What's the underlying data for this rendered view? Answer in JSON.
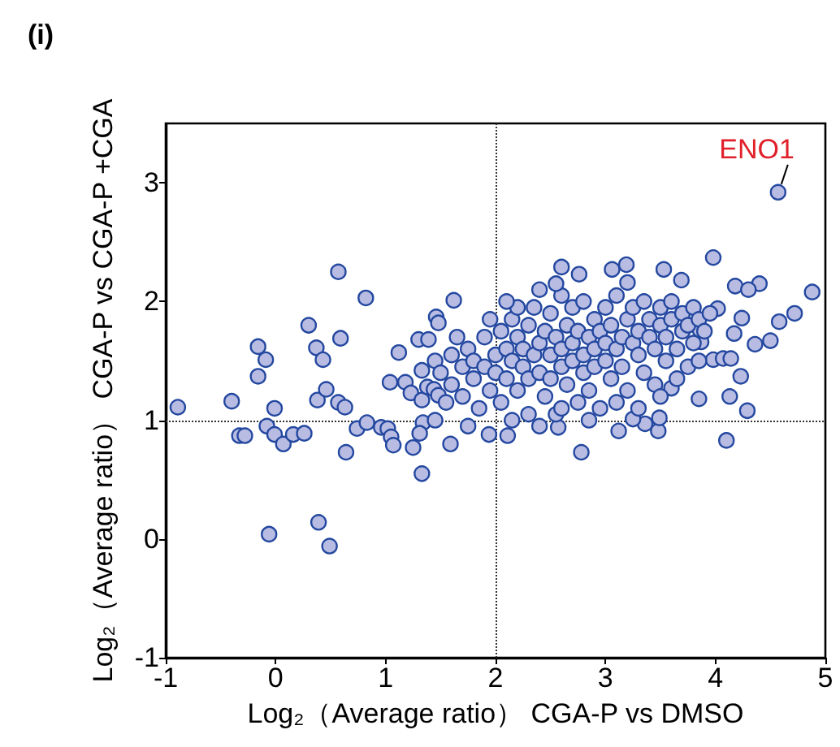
{
  "chart_data": {
    "type": "scatter",
    "title": "(i)",
    "xlabel": "Log₂（Average ratio） CGA-P vs DMSO",
    "ylabel": "Log₂（Average ratio） CGA-P vs CGA-P +CGA",
    "xlim": [
      -1,
      5
    ],
    "xticks": [
      -1,
      0,
      1,
      2,
      3,
      4,
      5
    ],
    "ylim": [
      -1,
      3.5
    ],
    "yticks": [
      -1,
      0,
      1,
      2,
      3
    ],
    "grid": false,
    "marker": "circle",
    "ref_lines": [
      {
        "axis": "x",
        "value": 2,
        "line_style": "dotted",
        "color": "#333333"
      },
      {
        "axis": "y",
        "value": 1,
        "line_style": "dotted",
        "color": "#333333"
      }
    ],
    "annotations": [
      {
        "text": "ENO1",
        "x": 4.57,
        "y": 2.92
      }
    ],
    "series": [
      {
        "color": "#b8bce3",
        "x": [
          -0.89,
          -0.4,
          -0.33,
          -0.28,
          -0.16,
          -0.09,
          -0.16,
          -0.01,
          -0.08,
          -0.01,
          0.07,
          0.16,
          0.26,
          -0.06,
          0.39,
          0.49,
          0.3,
          0.37,
          0.43,
          0.57,
          0.59,
          0.82,
          0.38,
          0.46,
          0.57,
          0.63,
          0.64,
          0.74,
          0.83,
          0.96,
          1.02,
          1.05,
          1.07,
          1.04,
          1.18,
          1.23,
          1.12,
          1.3,
          1.39,
          1.46,
          1.48,
          1.33,
          1.45,
          1.33,
          1.34,
          1.31,
          1.25,
          1.33,
          1.38,
          1.44,
          1.48,
          4.57,
          3.98,
          4.88,
          4.72,
          4.58,
          4.5,
          4.36,
          4.4,
          4.24,
          4.17,
          4.23,
          4.13,
          4.29,
          4.1,
          3.98,
          4.07,
          4.14,
          3.85,
          3.48,
          3.49,
          3.36,
          3.25,
          3.12,
          2.78,
          2.57,
          2.11,
          1.94,
          1.59,
          1.62,
          3.19,
          3.06,
          2.6,
          2.76,
          3.2,
          3.53,
          3.69,
          3.6,
          3.87,
          3.86,
          4.02,
          4.18,
          4.3,
          1.5,
          1.6,
          1.6,
          1.7,
          1.7,
          1.75,
          1.8,
          1.8,
          1.85,
          1.9,
          1.9,
          1.95,
          2.0,
          2.0,
          2.05,
          2.05,
          2.1,
          2.1,
          2.15,
          2.15,
          2.2,
          2.2,
          2.25,
          2.25,
          2.3,
          2.3,
          2.3,
          2.35,
          2.35,
          2.4,
          2.4,
          2.45,
          2.45,
          2.5,
          2.5,
          2.5,
          2.55,
          2.55,
          2.6,
          2.6,
          2.6,
          2.65,
          2.65,
          2.7,
          2.7,
          2.7,
          2.75,
          2.75,
          2.8,
          2.8,
          2.8,
          2.85,
          2.85,
          2.9,
          2.9,
          2.9,
          2.95,
          2.95,
          3.0,
          3.0,
          3.0,
          3.05,
          3.05,
          3.1,
          3.1,
          3.15,
          3.15,
          3.2,
          3.2,
          3.25,
          3.25,
          3.3,
          3.3,
          3.35,
          3.35,
          3.4,
          3.4,
          3.45,
          3.45,
          3.5,
          3.5,
          3.55,
          3.55,
          3.6,
          3.6,
          3.65,
          3.7,
          3.7,
          3.75,
          3.75,
          3.8,
          3.8,
          3.85,
          3.9,
          3.95,
          2.2,
          2.4,
          2.55,
          1.95,
          2.1,
          1.65,
          1.55,
          1.45,
          1.75,
          2.15,
          2.4,
          2.6,
          2.85,
          3.1,
          3.3,
          3.5,
          3.65,
          3.85
        ],
        "values": [
          1.11,
          1.16,
          0.87,
          0.87,
          1.62,
          1.51,
          1.37,
          1.1,
          0.95,
          0.88,
          0.8,
          0.88,
          0.89,
          0.04,
          0.14,
          -0.06,
          1.8,
          1.61,
          1.51,
          2.25,
          1.69,
          2.03,
          1.17,
          1.26,
          1.15,
          1.11,
          0.73,
          0.93,
          0.98,
          0.94,
          0.93,
          0.86,
          0.79,
          1.32,
          1.32,
          1.23,
          1.57,
          1.68,
          1.68,
          1.87,
          1.82,
          1.42,
          1.5,
          1.17,
          0.98,
          0.89,
          0.77,
          0.55,
          1.28,
          1.26,
          1.21,
          2.92,
          2.37,
          2.08,
          1.9,
          1.83,
          1.67,
          1.64,
          2.15,
          1.86,
          1.73,
          1.37,
          1.2,
          1.08,
          0.83,
          1.51,
          1.52,
          1.52,
          1.18,
          0.91,
          1.02,
          0.97,
          1.01,
          0.91,
          0.73,
          0.94,
          0.87,
          0.88,
          0.8,
          2.01,
          2.31,
          2.27,
          2.29,
          2.23,
          2.16,
          2.27,
          2.18,
          1.27,
          1.66,
          1.76,
          1.94,
          2.13,
          2.1,
          1.4,
          1.55,
          1.3,
          1.45,
          1.2,
          1.6,
          1.35,
          1.5,
          1.1,
          1.45,
          1.7,
          1.25,
          1.55,
          1.4,
          1.75,
          1.15,
          1.6,
          1.35,
          1.5,
          1.85,
          1.7,
          1.25,
          1.45,
          1.6,
          1.8,
          1.35,
          1.05,
          1.55,
          1.95,
          1.65,
          1.4,
          1.75,
          1.2,
          1.55,
          1.9,
          1.35,
          1.7,
          1.05,
          1.6,
          1.45,
          2.05,
          1.8,
          1.3,
          1.65,
          1.5,
          1.95,
          1.15,
          1.75,
          1.55,
          1.4,
          2.0,
          1.7,
          1.25,
          1.6,
          1.85,
          1.45,
          1.75,
          1.1,
          1.65,
          1.5,
          1.95,
          1.35,
          1.8,
          1.6,
          2.05,
          1.7,
          1.45,
          1.85,
          1.25,
          1.65,
          1.95,
          1.55,
          1.75,
          1.4,
          2.0,
          1.7,
          1.85,
          1.6,
          1.3,
          1.8,
          1.95,
          1.5,
          1.7,
          1.85,
          2.0,
          1.6,
          1.75,
          1.9,
          1.45,
          1.8,
          1.95,
          1.65,
          1.85,
          1.75,
          1.9,
          1.95,
          2.1,
          2.15,
          1.85,
          2.0,
          1.7,
          1.15,
          1.0,
          0.95,
          1.0,
          0.95,
          1.1,
          1.0,
          1.15,
          1.1,
          1.2,
          1.35,
          1.5
        ]
      }
    ]
  }
}
